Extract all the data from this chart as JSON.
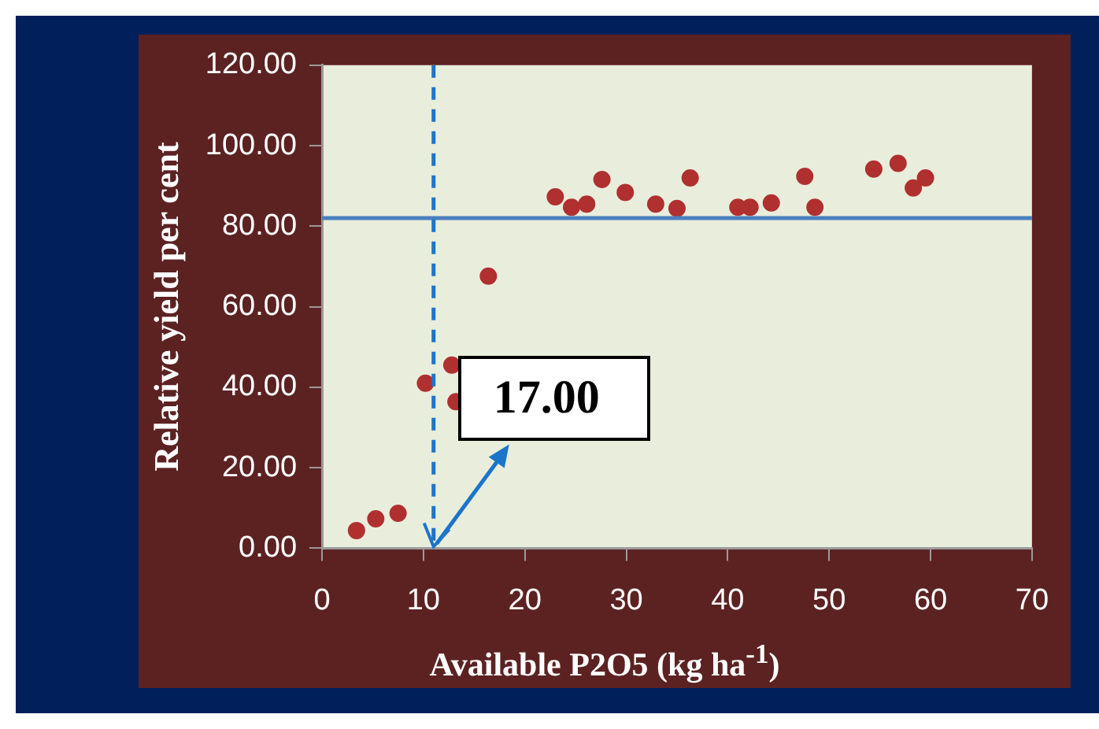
{
  "chart_data": {
    "type": "scatter",
    "xlabel": "Available P2O5  (kg ha$^{-1}$)",
    "ylabel": "Relative yield per cent",
    "x": [
      3.4,
      5.3,
      7.5,
      10.2,
      12.8,
      13.2,
      16.4,
      23,
      24.6,
      26.1,
      27.6,
      29.9,
      32.9,
      35,
      36.3,
      41,
      42.2,
      44.3,
      47.6,
      48.6,
      54.4,
      56.8,
      58.3,
      59.5
    ],
    "series": [
      {
        "color": "#b03030",
        "values": [
          4.4,
          7.3,
          8.7,
          41,
          45.5,
          36.4,
          67.6,
          87.3,
          84.7,
          85.5,
          91.6,
          88.4,
          85.5,
          84.4,
          92,
          84.7,
          84.7,
          85.8,
          92.4,
          84.7,
          94.2,
          95.6,
          89.5,
          92
        ]
      }
    ],
    "xlim": [
      0,
      70
    ],
    "xticks": [
      0,
      10,
      20,
      30,
      40,
      50,
      60,
      70
    ],
    "ylim": [
      0,
      120
    ],
    "yticks": [
      {
        "value": 0,
        "label": "0.00"
      },
      {
        "value": 20,
        "label": "20.00"
      },
      {
        "value": 40,
        "label": "40.00"
      },
      {
        "value": 60,
        "label": "60.00"
      },
      {
        "value": 80,
        "label": "80.00"
      },
      {
        "value": 100,
        "label": "100.00"
      },
      {
        "value": 120,
        "label": "120.00"
      }
    ],
    "ref_lines": [
      {
        "axis": "y",
        "value": 82,
        "color": "#4a7fc0"
      },
      {
        "axis": "x",
        "value": 11,
        "color": "#1b75c9",
        "line_style": "dashed"
      }
    ],
    "annotations": [
      {
        "text": "17.00",
        "x": 11,
        "y": 0
      }
    ],
    "marker": "circle",
    "grid": false,
    "legend": false
  }
}
